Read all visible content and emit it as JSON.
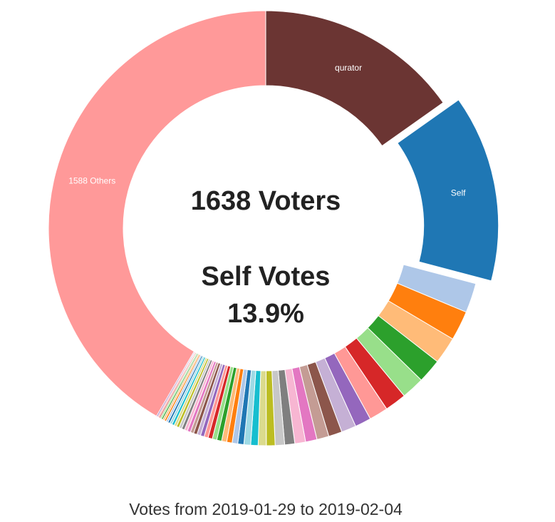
{
  "chart_data": {
    "type": "donut",
    "categories": [
      "qurator",
      "Self",
      null,
      null,
      null,
      null,
      null,
      null,
      null,
      null,
      null,
      null,
      null,
      null,
      null,
      null,
      null,
      null,
      null,
      null,
      null,
      null,
      null,
      null,
      null,
      null,
      null,
      null,
      null,
      null,
      null,
      null,
      null,
      null,
      null,
      null,
      null,
      null,
      null,
      null,
      null,
      null,
      null,
      null,
      null,
      null,
      null,
      null,
      null,
      null,
      "1588 Others"
    ],
    "values": [
      15.2,
      13.9,
      2.2,
      2.2,
      2.0,
      1.8,
      1.7,
      1.6,
      1.4,
      1.2,
      1.1,
      1.0,
      0.9,
      0.85,
      0.8,
      0.75,
      0.7,
      0.65,
      0.6,
      0.55,
      0.5,
      0.45,
      0.42,
      0.4,
      0.38,
      0.36,
      0.34,
      0.32,
      0.3,
      0.28,
      0.27,
      0.26,
      0.25,
      0.24,
      0.23,
      0.22,
      0.21,
      0.2,
      0.19,
      0.18,
      0.17,
      0.16,
      0.15,
      0.14,
      0.13,
      0.12,
      0.11,
      0.1,
      0.1,
      0.1,
      41.6
    ],
    "colors": [
      "#6b3533",
      "#1f77b4",
      "#aec7e8",
      "#ff7f0e",
      "#ffbb78",
      "#2ca02c",
      "#98df8a",
      "#d62728",
      "#ff9896",
      "#9467bd",
      "#c5b0d5",
      "#8c564b",
      "#c49c94",
      "#e377c2",
      "#f7b6d2",
      "#7f7f7f",
      "#c7c7c7",
      "#bcbd22",
      "#dbdb8d",
      "#17becf",
      "#9edae5",
      "#1f77b4",
      "#aec7e8",
      "#ff7f0e",
      "#ffbb78",
      "#2ca02c",
      "#98df8a",
      "#d62728",
      "#ff9896",
      "#9467bd",
      "#c5b0d5",
      "#8c564b",
      "#c49c94",
      "#e377c2",
      "#f7b6d2",
      "#7f7f7f",
      "#c7c7c7",
      "#bcbd22",
      "#dbdb8d",
      "#17becf",
      "#9edae5",
      "#1f77b4",
      "#aec7e8",
      "#ff7f0e",
      "#ffbb78",
      "#2ca02c",
      "#98df8a",
      "#d62728",
      "#ff9896",
      "#9467bd",
      "#ff9999"
    ],
    "exploded": "Self",
    "center_text": [
      "1638 Voters",
      "Self Votes",
      "13.9%"
    ],
    "caption": "Votes from 2019-01-29 to 2019-02-04"
  }
}
